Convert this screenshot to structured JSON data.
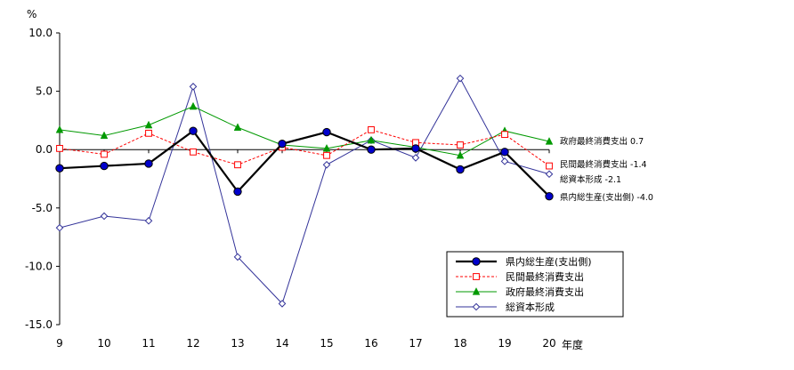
{
  "chart_data": {
    "type": "line",
    "y_unit": "%",
    "x_unit": "年度",
    "ylim": [
      -15.0,
      10.0
    ],
    "y_ticks": [
      10.0,
      5.0,
      0.0,
      -5.0,
      -10.0,
      -15.0
    ],
    "y_tick_labels": [
      "10.0",
      "5.0",
      "0.0",
      "-5.0",
      "-10.0",
      "-15.0"
    ],
    "categories": [
      "9",
      "10",
      "11",
      "12",
      "13",
      "14",
      "15",
      "16",
      "17",
      "18",
      "19",
      "20"
    ],
    "grid": false,
    "legend_position": "bottom-right",
    "series": [
      {
        "name": "県内総生産(支出側)",
        "color": "#000000",
        "marker": "filled-circle",
        "line_style": "solid-thick",
        "values": [
          -1.6,
          -1.4,
          -1.2,
          1.6,
          -3.6,
          0.5,
          1.5,
          0.0,
          0.1,
          -1.7,
          -0.2,
          -4.0
        ],
        "end_label": "県内総生産(支出側) -4.0"
      },
      {
        "name": "民間最終消費支出",
        "color": "#ff0000",
        "marker": "open-square",
        "line_style": "dashed",
        "values": [
          0.1,
          -0.4,
          1.4,
          -0.2,
          -1.3,
          0.2,
          -0.5,
          1.7,
          0.6,
          0.4,
          1.3,
          -1.4
        ],
        "end_label": "民間最終消費支出 -1.4"
      },
      {
        "name": "政府最終消費支出",
        "color": "#009900",
        "marker": "filled-triangle",
        "line_style": "solid",
        "values": [
          1.7,
          1.2,
          2.1,
          3.7,
          1.9,
          0.4,
          0.1,
          0.8,
          0.2,
          -0.5,
          1.6,
          0.7
        ],
        "end_label": "政府最終消費支出 0.7"
      },
      {
        "name": "総資本形成",
        "color": "#333399",
        "marker": "open-diamond",
        "line_style": "solid",
        "values": [
          -6.7,
          -5.7,
          -6.1,
          5.4,
          -9.2,
          -13.2,
          -1.3,
          0.8,
          -0.7,
          6.1,
          -1.0,
          -2.1
        ],
        "end_label": "総資本形成 -2.1"
      }
    ]
  }
}
